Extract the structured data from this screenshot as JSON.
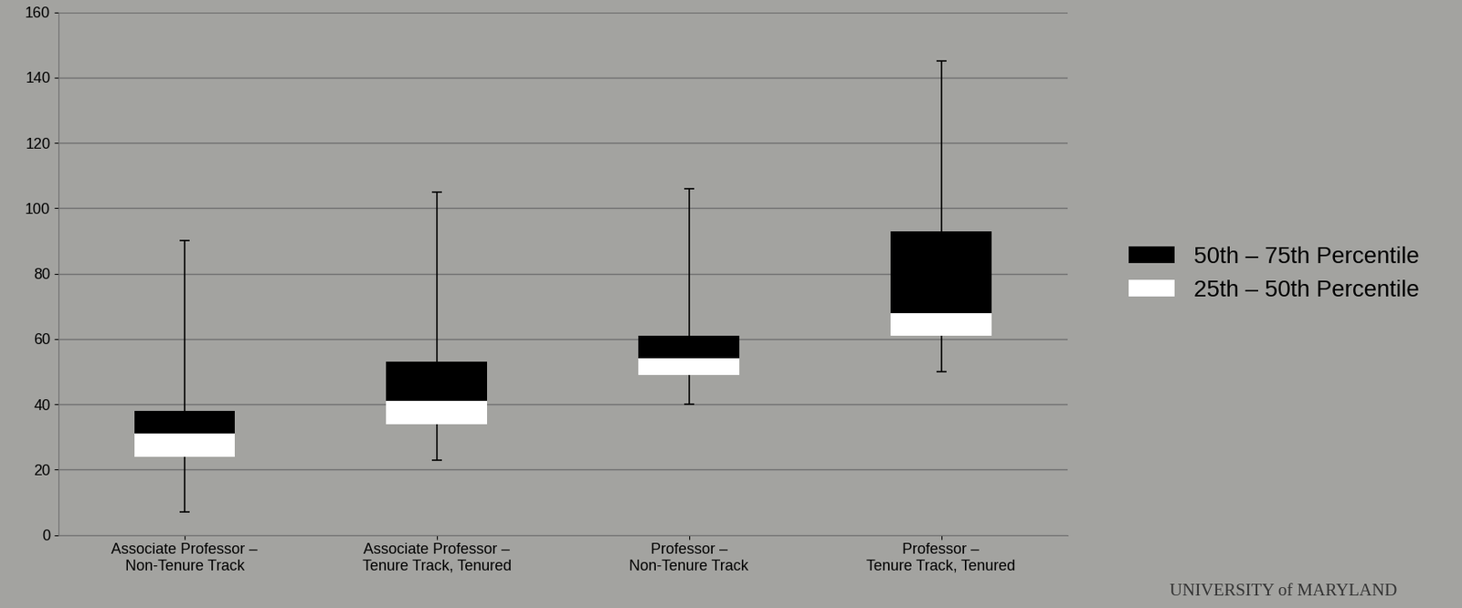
{
  "chart_data": {
    "type": "box",
    "categories": [
      "Associate Professor –\nNon-Tenure Track",
      "Associate Professor –\nTenure Track, Tenured",
      "Professor –\nNon-Tenure Track",
      "Professor –\nTenure Track, Tenured"
    ],
    "min": [
      7,
      23,
      40,
      50
    ],
    "q1": [
      24,
      34,
      49,
      61
    ],
    "median": [
      31,
      41,
      54,
      68
    ],
    "q3": [
      38,
      53,
      61,
      93
    ],
    "max": [
      90,
      105,
      106,
      145
    ],
    "series": [
      {
        "name": "50th – 75th Percentile",
        "color": "#000000"
      },
      {
        "name": "25th – 50th Percentile",
        "color": "#ffffff"
      }
    ],
    "ylim": [
      0,
      160
    ],
    "yticks": [
      0,
      20,
      40,
      60,
      80,
      100,
      120,
      140,
      160
    ],
    "grid": true,
    "legend": "right",
    "annotations": [
      "UNIVERSITY of MARYLAND"
    ]
  }
}
